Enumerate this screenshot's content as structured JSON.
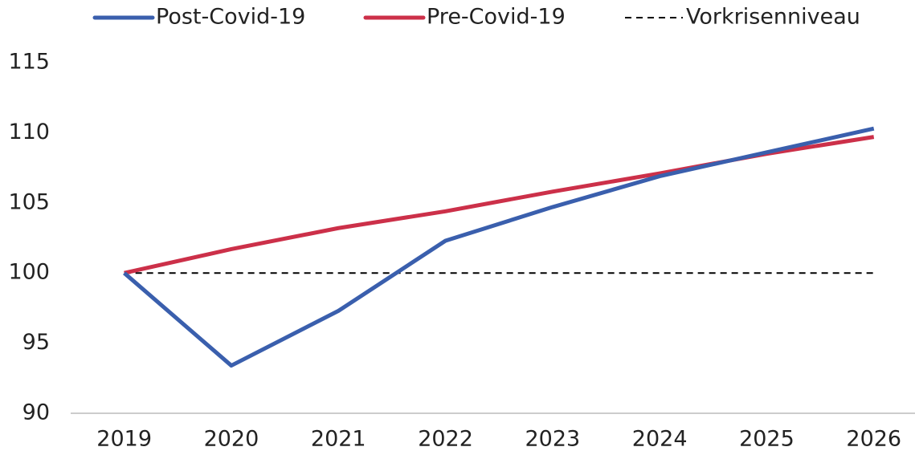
{
  "chart_data": {
    "type": "line",
    "categories": [
      "2019",
      "2020",
      "2021",
      "2022",
      "2023",
      "2024",
      "2025",
      "2026"
    ],
    "series": [
      {
        "name": "Post-Covid-19",
        "color": "#3a5fad",
        "values": [
          100,
          93.4,
          97.3,
          102.3,
          104.7,
          106.9,
          108.6,
          110.3
        ]
      },
      {
        "name": "Pre-Covid-19",
        "color": "#cc3049",
        "values": [
          100,
          101.7,
          103.2,
          104.4,
          105.8,
          107.1,
          108.5,
          109.7
        ]
      },
      {
        "name": "Vorkrisenniveau",
        "color": "#000000",
        "dashed": true,
        "values": [
          100,
          100,
          100,
          100,
          100,
          100,
          100,
          100
        ]
      }
    ],
    "ylim": [
      90,
      115
    ],
    "yticks": [
      90,
      95,
      100,
      105,
      110,
      115
    ],
    "grid": false,
    "legend": "top"
  }
}
